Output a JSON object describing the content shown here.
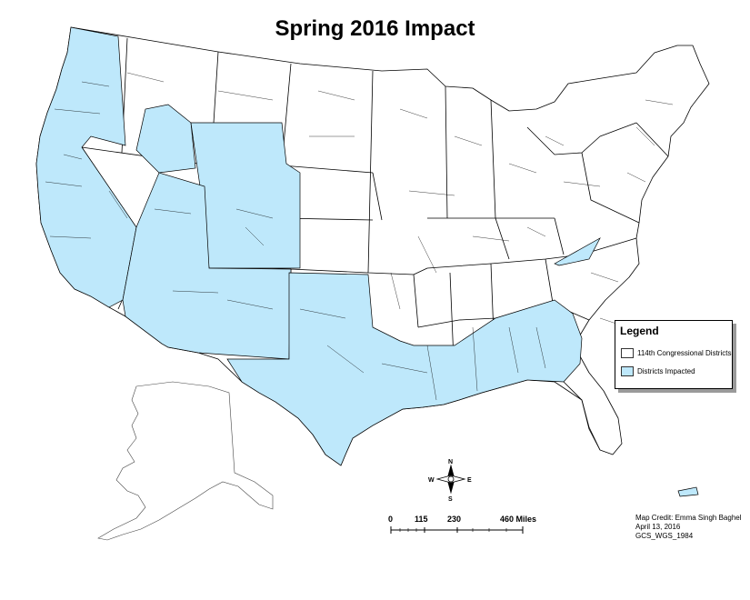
{
  "title": "Spring 2016 Impact",
  "legend": {
    "title": "Legend",
    "items": [
      {
        "label": "114th Congressional Districts",
        "color": "#ffffff"
      },
      {
        "label": "Districts Impacted",
        "color": "#bee8fb"
      }
    ]
  },
  "scale_bar": {
    "labels": [
      "0",
      "115",
      "230",
      "460 Miles"
    ],
    "values": [
      0,
      115,
      230,
      460
    ],
    "unit": "Miles"
  },
  "compass": {
    "n": "N",
    "s": "S",
    "e": "E",
    "w": "W"
  },
  "credit": {
    "line1": "Map Credit: Emma Singh Baghel",
    "line2": "April 13, 2016",
    "line3": "GCS_WGS_1984"
  },
  "colors": {
    "impacted": "#bee8fb",
    "district": "#ffffff",
    "outline": "#000000"
  }
}
